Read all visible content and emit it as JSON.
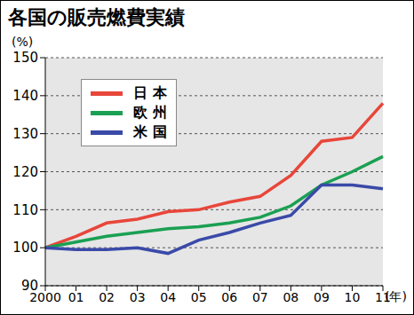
{
  "chart_data": {
    "type": "line",
    "title": "各国の販売燃費実績",
    "y_label": "(%)",
    "x_label": "(年)",
    "categories": [
      "2000",
      "01",
      "02",
      "03",
      "04",
      "05",
      "06",
      "07",
      "08",
      "09",
      "10",
      "11"
    ],
    "series": [
      {
        "name": "日 本",
        "color": "#e8463a",
        "values": [
          100,
          103,
          106.5,
          107.5,
          109.5,
          110,
          112,
          113.5,
          119,
          128,
          129,
          138
        ]
      },
      {
        "name": "欧 州",
        "color": "#1aa052",
        "values": [
          100,
          101.5,
          103,
          104,
          105,
          105.5,
          106.5,
          108,
          111,
          116.5,
          120,
          124
        ]
      },
      {
        "name": "米 国",
        "color": "#3a4aa8",
        "values": [
          100,
          99.5,
          99.5,
          100,
          98.5,
          102,
          104,
          106.5,
          108.5,
          116.5,
          116.5,
          115.5
        ]
      }
    ],
    "ylim": [
      90,
      150
    ],
    "yticks": [
      90,
      100,
      110,
      120,
      130,
      140,
      150
    ],
    "grid": true,
    "legend": "top-left"
  }
}
